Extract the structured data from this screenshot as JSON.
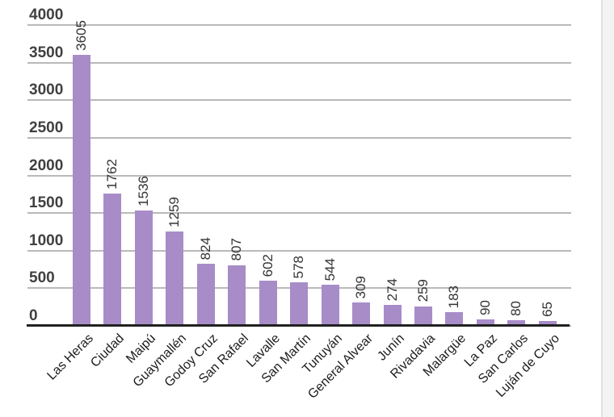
{
  "chart_data": {
    "type": "bar",
    "title": "",
    "xlabel": "",
    "ylabel": "",
    "categories": [
      "Las Heras",
      "Ciudad",
      "Maipú",
      "Guaymallén",
      "Godoy Cruz",
      "San Rafael",
      "Lavalle",
      "San Martín",
      "Tunuyán",
      "General Alvear",
      "Junín",
      "Rivadavia",
      "Malargüe",
      "La Paz",
      "San Carlos",
      "Luján de Cuyo"
    ],
    "values": [
      3605,
      1762,
      1536,
      1259,
      824,
      807,
      602,
      578,
      544,
      309,
      274,
      259,
      183,
      90,
      80,
      65
    ],
    "ylim": [
      0,
      4000
    ],
    "y_ticks": [
      0,
      500,
      1000,
      1500,
      2000,
      2500,
      3000,
      3500,
      4000
    ],
    "grid": true,
    "legend": "none",
    "data_labels_rotated_90": true,
    "category_labels_rotated_45": true
  },
  "colors": {
    "bar_fill": "#a78cc8",
    "gridline": "#b9b9b9",
    "axis_line": "#212121",
    "tick_label": "#404040",
    "value_label": "#333333",
    "category_label": "#1c1c1c",
    "background": "#ffffff",
    "gutter_bg": "#f3f3f3",
    "gutter_border": "#e0e0e0"
  }
}
